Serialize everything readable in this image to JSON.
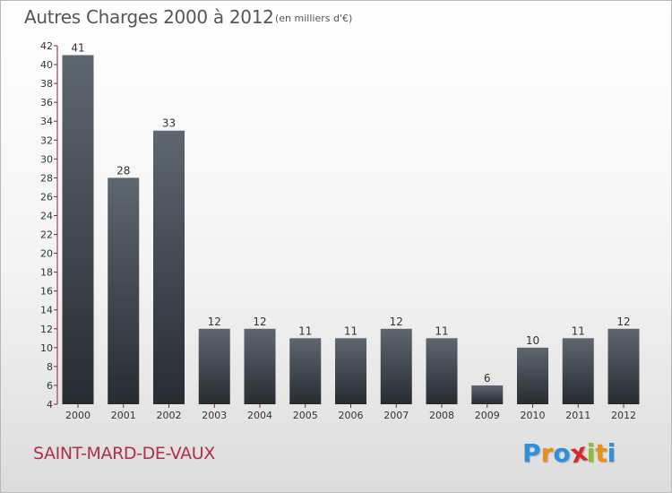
{
  "title": "Autres Charges 2000 à 2012",
  "subtitle": "(en milliers d'€)",
  "location": "SAINT-MARD-DE-VAUX",
  "logo": {
    "text": "Proxiti",
    "letters": [
      {
        "char": "P",
        "color": "#2f8fd8"
      },
      {
        "char": "r",
        "color": "#e8901a"
      },
      {
        "char": "o",
        "color": "#2f8fd8"
      },
      {
        "char": "x",
        "color": "#d8282c"
      },
      {
        "char": "i",
        "color": "#8cbd2a"
      },
      {
        "char": "t",
        "color": "#e8901a"
      },
      {
        "char": "i",
        "color": "#2f8fd8"
      }
    ]
  },
  "chart_data": {
    "type": "bar",
    "title": "Autres Charges 2000 à 2012",
    "subtitle": "(en milliers d'€)",
    "categories": [
      "2000",
      "2001",
      "2002",
      "2003",
      "2004",
      "2005",
      "2006",
      "2007",
      "2008",
      "2009",
      "2010",
      "2011",
      "2012"
    ],
    "values": [
      41,
      28,
      33,
      12,
      12,
      11,
      11,
      12,
      11,
      6,
      10,
      11,
      12
    ],
    "ylim": [
      4,
      42
    ],
    "yticks": [
      4,
      6,
      8,
      10,
      12,
      14,
      16,
      18,
      20,
      22,
      24,
      26,
      28,
      30,
      32,
      34,
      36,
      38,
      40,
      42
    ],
    "grid": false,
    "legend": "none",
    "colors": {
      "bar_top": "#5e6670",
      "bar_bottom": "#272c31",
      "axis": "#8a1f3c",
      "label": "#333333"
    }
  }
}
